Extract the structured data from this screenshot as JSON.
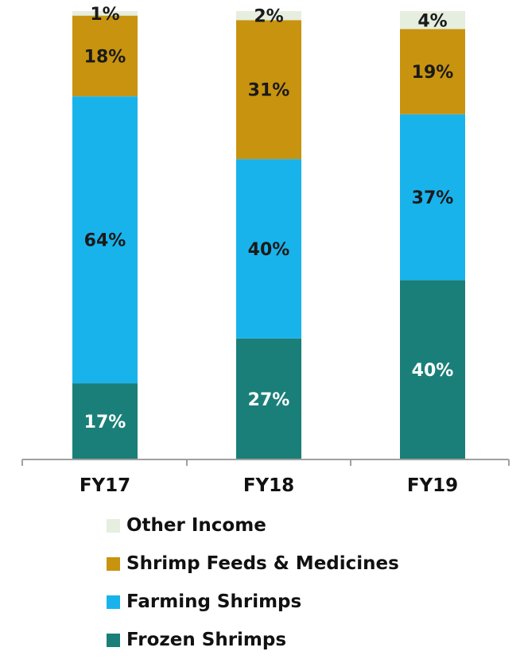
{
  "chart_data": {
    "type": "bar",
    "stacked": true,
    "percent": true,
    "categories": [
      "FY17",
      "FY18",
      "FY19"
    ],
    "series": [
      {
        "name": "Frozen Shrimps",
        "values": [
          17,
          27,
          40
        ],
        "labels": [
          "17%",
          "27%",
          "40%"
        ],
        "color": "#1a7f78",
        "label_color": "#ffffff"
      },
      {
        "name": "Farming Shrimps",
        "values": [
          64,
          40,
          37
        ],
        "labels": [
          "64%",
          "40%",
          "37%"
        ],
        "color": "#19b3ec",
        "label_color": "#1a1a1a"
      },
      {
        "name": "Shrimp Feeds & Medicines",
        "values": [
          18,
          31,
          19
        ],
        "labels": [
          "18%",
          "31%",
          "19%"
        ],
        "color": "#c8930f",
        "label_color": "#1a1a1a"
      },
      {
        "name": "Other Income",
        "values": [
          1,
          2,
          4
        ],
        "labels": [
          "1%",
          "2%",
          "4%"
        ],
        "color": "#e6eedf",
        "label_color": "#1a1a1a"
      }
    ],
    "ylim": [
      0,
      100
    ],
    "grid": false,
    "legend_position": "bottom",
    "legend_order": [
      "Other Income",
      "Shrimp Feeds & Medicines",
      "Farming Shrimps",
      "Frozen Shrimps"
    ]
  }
}
